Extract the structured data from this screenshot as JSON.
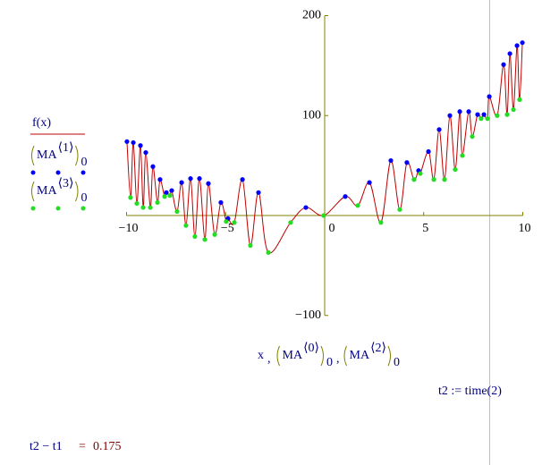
{
  "chart_data": {
    "type": "line",
    "x_label": {
      "var": "x",
      "separator": ",",
      "terms": [
        {
          "name": "MA",
          "superscript": "⟨0⟩",
          "subscript": "0"
        },
        {
          "name": "MA",
          "superscript": "⟨2⟩",
          "subscript": "0"
        }
      ]
    },
    "xlim": [
      -10,
      10
    ],
    "xticks": [
      {
        "value": -10,
        "label": "−10"
      },
      {
        "value": -5,
        "label": "−5"
      },
      0,
      5,
      10
    ],
    "ylim": [
      -100,
      200
    ],
    "yticks": [
      {
        "value": -100,
        "label": "−100"
      },
      100,
      200
    ],
    "series": [
      {
        "name": "f(x)",
        "color": "#c00000",
        "x": [
          -9.98,
          -9.8,
          -9.66,
          -9.48,
          -9.3,
          -9.16,
          -9.03,
          -8.8,
          -8.67,
          -8.44,
          -8.31,
          -8.08,
          -7.99,
          -7.81,
          -7.72,
          -7.45,
          -7.22,
          -7.0,
          -6.77,
          -6.55,
          -6.32,
          -6.05,
          -5.87,
          -5.55,
          -5.24,
          -4.97,
          -4.88,
          -4.56,
          -4.15,
          -3.75,
          -3.34,
          -2.84,
          -1.72,
          -0.95,
          -0.05,
          1.04,
          1.67,
          2.26,
          2.84,
          3.34,
          3.79,
          4.15,
          4.51,
          4.74,
          4.83,
          5.24,
          5.51,
          5.78,
          6.05,
          6.32,
          6.59,
          6.82,
          6.95,
          7.27,
          7.45,
          7.72,
          7.9,
          8.04,
          8.22,
          8.31,
          8.71,
          9.03,
          9.21,
          9.35,
          9.53,
          9.71,
          9.84,
          9.98
        ],
        "values": [
          74,
          18,
          73,
          12,
          70,
          8,
          63,
          8,
          49,
          13,
          36,
          19,
          23,
          20,
          25,
          4,
          33,
          -10,
          37,
          -21,
          37,
          -24,
          32,
          -19,
          13,
          -6,
          -3,
          -7,
          36,
          -30,
          23,
          -37,
          -7,
          8,
          0,
          19,
          10,
          33,
          -7,
          55,
          6,
          53,
          36,
          45,
          42,
          64,
          36,
          86,
          36,
          100,
          46,
          104,
          60,
          104,
          79,
          101,
          97,
          101,
          97,
          119,
          100,
          151,
          101,
          162,
          106,
          170,
          116,
          173
        ]
      },
      {
        "name": "MA",
        "superscript": "⟨1⟩",
        "subscript": "0",
        "color": "#0000ff",
        "x": [
          -9.98,
          -9.66,
          -9.3,
          -9.03,
          -8.67,
          -8.31,
          -7.99,
          -7.72,
          -7.22,
          -6.77,
          -6.32,
          -5.87,
          -5.24,
          -4.88,
          -4.15,
          -3.34,
          -0.95,
          1.04,
          2.26,
          3.34,
          4.15,
          4.74,
          5.24,
          5.78,
          6.32,
          6.82,
          7.27,
          7.72,
          8.04,
          8.31,
          9.03,
          9.35,
          9.71,
          9.98
        ],
        "values": [
          74,
          73,
          70,
          63,
          49,
          36,
          23,
          25,
          33,
          37,
          37,
          32,
          13,
          -3,
          36,
          23,
          8,
          19,
          33,
          55,
          53,
          45,
          64,
          86,
          100,
          104,
          104,
          101,
          101,
          119,
          151,
          162,
          170,
          173
        ]
      },
      {
        "name": "MA",
        "superscript": "⟨3⟩",
        "subscript": "0",
        "color": "#22dd22",
        "x": [
          -9.8,
          -9.48,
          -9.16,
          -8.8,
          -8.44,
          -8.08,
          -7.81,
          -7.45,
          -7.0,
          -6.55,
          -6.05,
          -5.55,
          -4.97,
          -4.56,
          -3.75,
          -2.84,
          -1.72,
          -0.05,
          1.67,
          2.84,
          3.79,
          4.51,
          4.83,
          5.51,
          6.05,
          6.59,
          6.95,
          7.45,
          7.9,
          8.22,
          8.71,
          9.21,
          9.53,
          9.84
        ],
        "values": [
          18,
          12,
          8,
          8,
          13,
          19,
          20,
          4,
          -10,
          -21,
          -24,
          -19,
          -6,
          -7,
          -30,
          -37,
          -7,
          0,
          10,
          -7,
          6,
          36,
          42,
          36,
          36,
          46,
          60,
          79,
          97,
          97,
          100,
          101,
          106,
          116
        ]
      }
    ]
  },
  "annotations": {
    "assignment": "t2 := time(2)",
    "result": {
      "lhs": "t2 − t1",
      "op": "=",
      "value": 0.175
    }
  }
}
